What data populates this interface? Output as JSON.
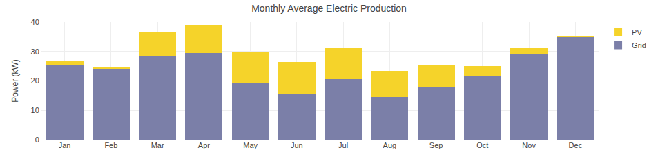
{
  "chart_data": {
    "type": "bar",
    "title": "Monthly Average Electric Production",
    "ylabel": "Power (kW)",
    "categories": [
      "Jan",
      "Feb",
      "Mar",
      "Apr",
      "May",
      "Jun",
      "Jul",
      "Aug",
      "Sep",
      "Oct",
      "Nov",
      "Dec"
    ],
    "series": [
      {
        "name": "Grid",
        "color": "#7b7fa8",
        "values": [
          25.5,
          24.0,
          28.5,
          29.5,
          19.5,
          15.5,
          20.5,
          14.5,
          18.0,
          21.5,
          29.0,
          35.0
        ]
      },
      {
        "name": "PV",
        "color": "#f5d32a",
        "values": [
          1.2,
          0.7,
          8.0,
          9.5,
          10.5,
          11.0,
          10.5,
          9.0,
          7.5,
          3.5,
          2.0,
          0.3
        ]
      }
    ],
    "stacked": true,
    "ylim": [
      0,
      40
    ],
    "yticks": [
      0,
      10,
      20,
      30,
      40
    ],
    "grid": true,
    "legend": "upper right"
  }
}
